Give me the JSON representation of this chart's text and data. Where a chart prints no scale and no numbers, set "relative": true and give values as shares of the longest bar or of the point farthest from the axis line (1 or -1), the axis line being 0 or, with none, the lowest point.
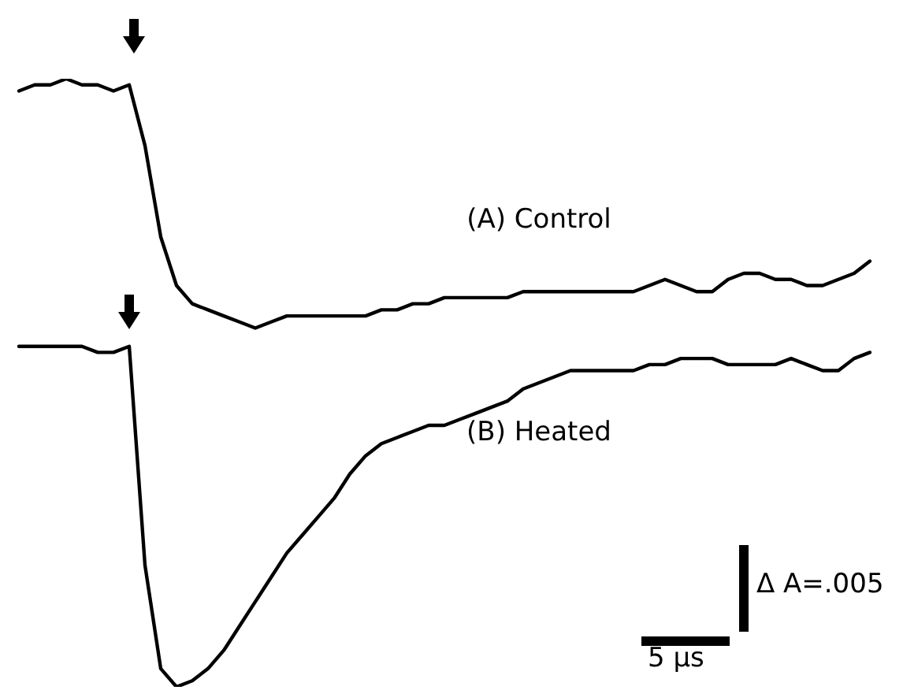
{
  "chart_data": {
    "type": "line",
    "relative": true,
    "legend": false,
    "marker": "none",
    "line_style": "solid",
    "categories": [
      null,
      null,
      null,
      null,
      null,
      null,
      null,
      null,
      null,
      null,
      null,
      null,
      null,
      null,
      null,
      null,
      null,
      null,
      null,
      null,
      null,
      null,
      null,
      null,
      null,
      null,
      null,
      null,
      null,
      null,
      null,
      null,
      null,
      null,
      null,
      null,
      null,
      null,
      null,
      null,
      null,
      null,
      null,
      null,
      null,
      null,
      null,
      null,
      null,
      null,
      null,
      null,
      null,
      null,
      null
    ],
    "series": [
      {
        "name": "(A) Control",
        "color": "#000000",
        "values": [
          0.98,
          0.99,
          0.99,
          1.0,
          0.99,
          0.99,
          0.98,
          0.99,
          0.89,
          0.74,
          0.66,
          0.63,
          0.62,
          0.61,
          0.6,
          0.59,
          0.6,
          0.61,
          0.61,
          0.61,
          0.61,
          0.61,
          0.61,
          0.62,
          0.62,
          0.63,
          0.63,
          0.64,
          0.64,
          0.64,
          0.64,
          0.64,
          0.65,
          0.65,
          0.65,
          0.65,
          0.65,
          0.65,
          0.65,
          0.65,
          0.66,
          0.67,
          0.66,
          0.65,
          0.65,
          0.67,
          0.68,
          0.68,
          0.67,
          0.67,
          0.66,
          0.66,
          0.67,
          0.68,
          0.7
        ]
      },
      {
        "name": "(B) Heated",
        "color": "#000000",
        "values": [
          0.56,
          0.56,
          0.56,
          0.56,
          0.56,
          0.55,
          0.55,
          0.56,
          0.2,
          0.03,
          0.0,
          0.01,
          0.03,
          0.06,
          0.1,
          0.14,
          0.18,
          0.22,
          0.25,
          0.28,
          0.31,
          0.35,
          0.38,
          0.4,
          0.41,
          0.42,
          0.43,
          0.43,
          0.44,
          0.45,
          0.46,
          0.47,
          0.49,
          0.5,
          0.51,
          0.52,
          0.52,
          0.52,
          0.52,
          0.52,
          0.53,
          0.53,
          0.54,
          0.54,
          0.54,
          0.53,
          0.53,
          0.53,
          0.53,
          0.54,
          0.53,
          0.52,
          0.52,
          0.54,
          0.55
        ]
      }
    ],
    "annotations": [
      "Δ A=.005",
      "5 μs"
    ]
  }
}
